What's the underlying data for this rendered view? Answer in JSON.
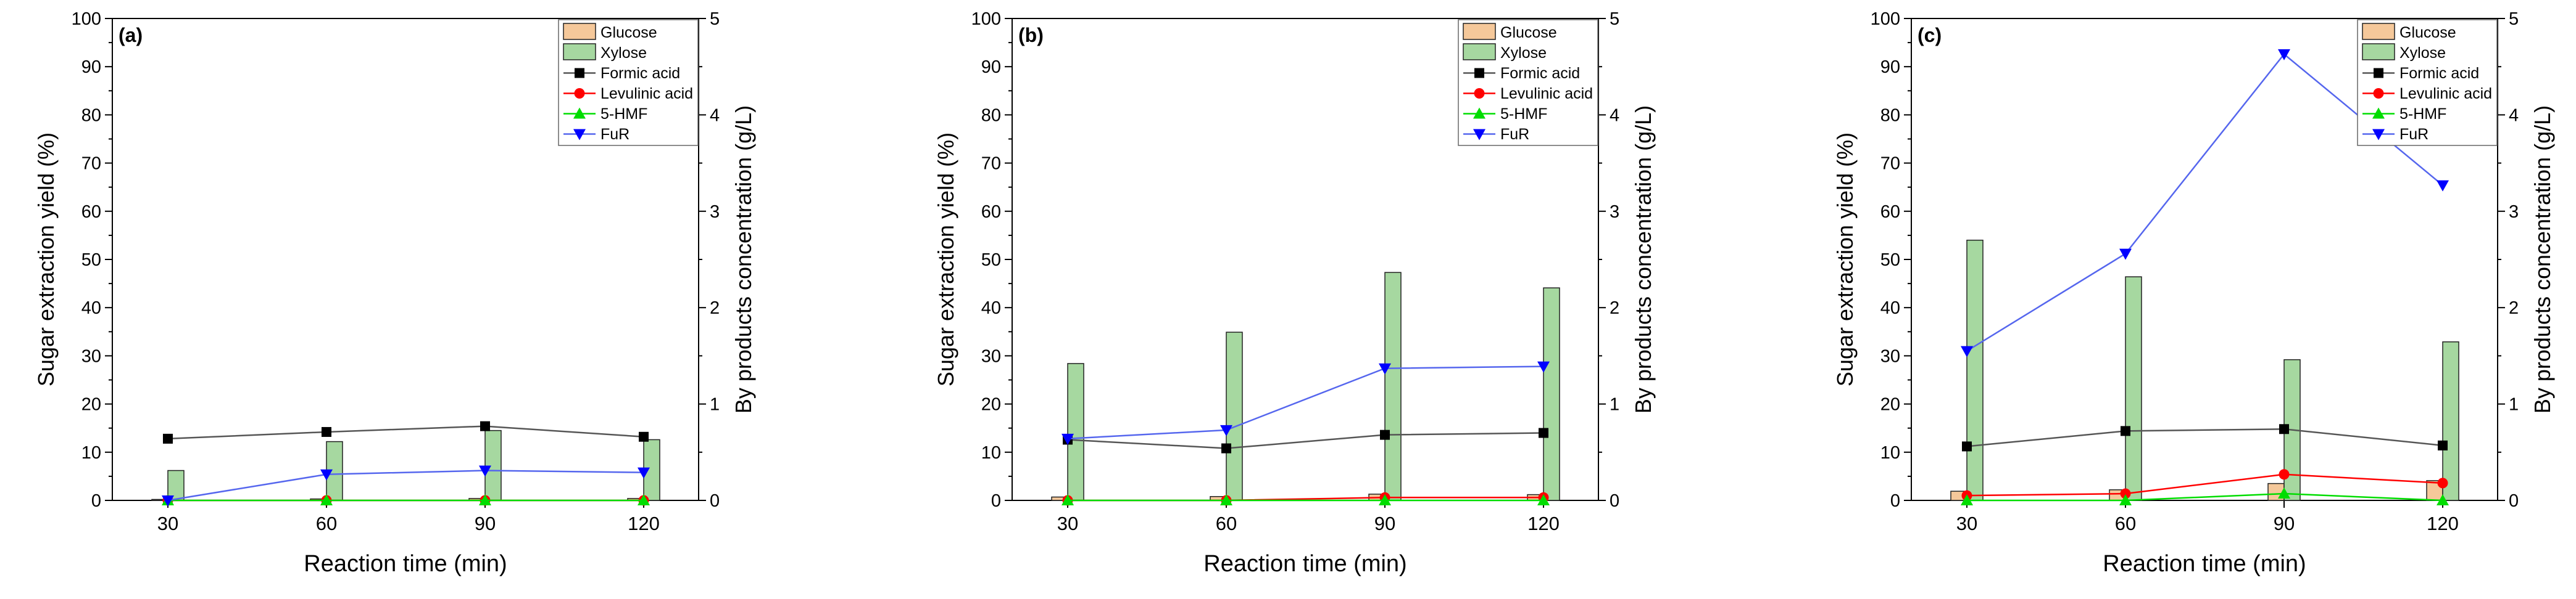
{
  "chart_data": [
    {
      "type": "bar+line",
      "panel_label": "(a)",
      "xlabel": "Reaction time (min)",
      "ylabel": "Sugar extraction yield (%)",
      "y2label": "By products concentration (g/L)",
      "categories": [
        "30",
        "60",
        "90",
        "120"
      ],
      "ylim": [
        0,
        100
      ],
      "y2lim": [
        0,
        5
      ],
      "yticks": [
        "0",
        "10",
        "20",
        "30",
        "40",
        "50",
        "60",
        "70",
        "80",
        "90",
        "100"
      ],
      "y2ticks": [
        "0",
        "1",
        "2",
        "3",
        "4",
        "5"
      ],
      "bar_series": [
        {
          "name": "Glucose",
          "values": [
            0.2,
            0.3,
            0.4,
            0.4
          ]
        },
        {
          "name": "Xylose",
          "values": [
            6.2,
            12.2,
            14.5,
            12.6
          ]
        }
      ],
      "line_series": [
        {
          "name": "Formic acid",
          "values": [
            0.64,
            0.71,
            0.77,
            0.66
          ]
        },
        {
          "name": "Levulinic acid",
          "values": [
            0.0,
            0.0,
            0.0,
            0.0
          ]
        },
        {
          "name": "5-HMF",
          "values": [
            0.0,
            0.0,
            0.0,
            0.0
          ]
        },
        {
          "name": "FuR",
          "values": [
            0.0,
            0.27,
            0.31,
            0.29
          ]
        }
      ]
    },
    {
      "type": "bar+line",
      "panel_label": "(b)",
      "xlabel": "Reaction time (min)",
      "ylabel": "Sugar extraction yield (%)",
      "y2label": "By products concentration (g/L)",
      "categories": [
        "30",
        "60",
        "90",
        "120"
      ],
      "ylim": [
        0,
        100
      ],
      "y2lim": [
        0,
        5
      ],
      "yticks": [
        "0",
        "10",
        "20",
        "30",
        "40",
        "50",
        "60",
        "70",
        "80",
        "90",
        "100"
      ],
      "y2ticks": [
        "0",
        "1",
        "2",
        "3",
        "4",
        "5"
      ],
      "bar_series": [
        {
          "name": "Glucose",
          "values": [
            0.7,
            0.8,
            1.3,
            1.2
          ]
        },
        {
          "name": "Xylose",
          "values": [
            28.4,
            34.9,
            47.3,
            44.1
          ]
        }
      ],
      "line_series": [
        {
          "name": "Formic acid",
          "values": [
            0.63,
            0.54,
            0.68,
            0.7
          ]
        },
        {
          "name": "Levulinic acid",
          "values": [
            0.0,
            0.0,
            0.03,
            0.03
          ]
        },
        {
          "name": "5-HMF",
          "values": [
            0.0,
            0.0,
            0.0,
            0.0
          ]
        },
        {
          "name": "FuR",
          "values": [
            0.64,
            0.73,
            1.37,
            1.39
          ]
        }
      ]
    },
    {
      "type": "bar+line",
      "panel_label": "(c)",
      "xlabel": "Reaction time (min)",
      "ylabel": "Sugar extraction yield (%)",
      "y2label": "By products concentration (g/L)",
      "categories": [
        "30",
        "60",
        "90",
        "120"
      ],
      "ylim": [
        0,
        100
      ],
      "y2lim": [
        0,
        5
      ],
      "yticks": [
        "0",
        "10",
        "20",
        "30",
        "40",
        "50",
        "60",
        "70",
        "80",
        "90",
        "100"
      ],
      "y2ticks": [
        "0",
        "1",
        "2",
        "3",
        "4",
        "5"
      ],
      "bar_series": [
        {
          "name": "Glucose",
          "values": [
            1.9,
            2.2,
            3.5,
            4.1
          ]
        },
        {
          "name": "Xylose",
          "values": [
            54.0,
            46.4,
            29.2,
            32.9
          ]
        }
      ],
      "line_series": [
        {
          "name": "Formic acid",
          "values": [
            0.56,
            0.72,
            0.74,
            0.57
          ]
        },
        {
          "name": "Levulinic acid",
          "values": [
            0.05,
            0.07,
            0.27,
            0.18
          ]
        },
        {
          "name": "5-HMF",
          "values": [
            0.0,
            0.0,
            0.07,
            0.0
          ]
        },
        {
          "name": "FuR",
          "values": [
            1.55,
            2.56,
            4.63,
            3.27
          ]
        }
      ]
    }
  ],
  "colors": {
    "Glucose": "#f5c89a",
    "Xylose": "#a6d8a0",
    "Formic acid": "#000000",
    "Formic acid line": "#555555",
    "Levulinic acid": "#ff0000",
    "5-HMF": "#00dd00",
    "FuR": "#0000ff",
    "FuR line": "#5566ee"
  }
}
